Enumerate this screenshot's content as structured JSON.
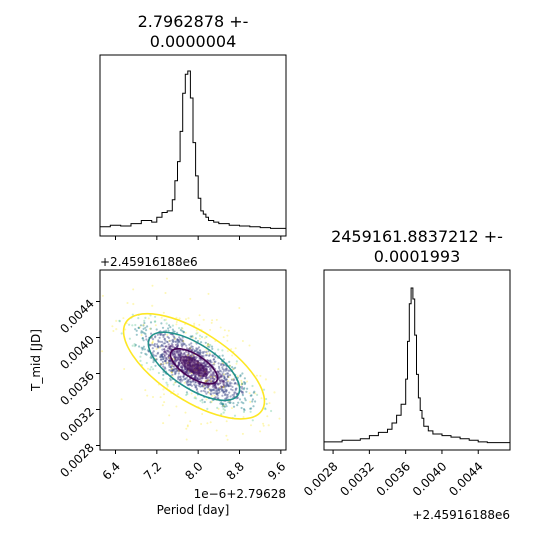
{
  "chart_data": [
    {
      "type": "histogram",
      "panel": "top-left",
      "title_line1": "2.7962878 +-",
      "title_line2": "0.0000004",
      "xlim": [
        6.1,
        9.7
      ],
      "tick_values": [
        6.4,
        7.2,
        8.0,
        8.8,
        9.6
      ],
      "step_x": [
        6.1,
        6.3,
        6.5,
        6.7,
        6.9,
        7.1,
        7.2,
        7.3,
        7.4,
        7.5,
        7.55,
        7.6,
        7.65,
        7.7,
        7.75,
        7.8,
        7.85,
        7.9,
        7.95,
        8.0,
        8.05,
        8.1,
        8.15,
        8.2,
        8.3,
        8.4,
        8.6,
        8.8,
        9.0,
        9.2,
        9.4,
        9.7
      ],
      "step_y": [
        0.02,
        0.03,
        0.025,
        0.04,
        0.06,
        0.05,
        0.08,
        0.11,
        0.12,
        0.19,
        0.31,
        0.43,
        0.62,
        0.86,
        0.98,
        1.0,
        0.83,
        0.55,
        0.34,
        0.2,
        0.12,
        0.1,
        0.08,
        0.06,
        0.05,
        0.04,
        0.03,
        0.025,
        0.02,
        0.015,
        0.01
      ]
    },
    {
      "type": "scatter+contour",
      "panel": "bottom-left",
      "offset_label": "+2.45916188e6",
      "xlabel": "Period [day]",
      "ylabel": "T_mid [JD]",
      "x_offset_label": "1e−6+2.79628",
      "xlim": [
        6.1,
        9.7
      ],
      "ylim": [
        0.00275,
        0.00475
      ],
      "x_tick_labels": [
        "6.4",
        "7.2",
        "8.0",
        "8.8",
        "9.6"
      ],
      "x_tick_values": [
        6.4,
        7.2,
        8.0,
        8.8,
        9.6
      ],
      "y_tick_labels": [
        "0.0028",
        "0.0032",
        "0.0036",
        "0.0040",
        "0.0044"
      ],
      "y_tick_values": [
        0.0028,
        0.0032,
        0.0036,
        0.004,
        0.0044
      ],
      "center": [
        7.92,
        0.00368
      ],
      "contours": [
        {
          "level": "inner",
          "color": "#440154"
        },
        {
          "level": "middle",
          "color": "#21918c"
        },
        {
          "level": "outer",
          "color": "#fde725"
        }
      ]
    },
    {
      "type": "histogram",
      "panel": "bottom-right",
      "title_line1": "2459161.8837212 +-",
      "title_line2": "0.0001993",
      "xlim": [
        0.0027,
        0.00475
      ],
      "tick_labels": [
        "0.0028",
        "0.0032",
        "0.0036",
        "0.0040",
        "0.0044"
      ],
      "tick_values": [
        0.0028,
        0.0032,
        0.0036,
        0.004,
        0.0044
      ],
      "offset_label": "+2.45916188e6",
      "step_x": [
        0.0027,
        0.0029,
        0.0031,
        0.0032,
        0.0033,
        0.0034,
        0.00345,
        0.0035,
        0.00355,
        0.0036,
        0.00362,
        0.00364,
        0.00366,
        0.00368,
        0.0037,
        0.00372,
        0.00374,
        0.00376,
        0.00378,
        0.0038,
        0.00385,
        0.0039,
        0.004,
        0.0041,
        0.0042,
        0.0043,
        0.0044,
        0.0045,
        0.00475
      ],
      "step_y": [
        0.02,
        0.03,
        0.04,
        0.06,
        0.08,
        0.1,
        0.14,
        0.19,
        0.26,
        0.42,
        0.66,
        0.9,
        1.0,
        0.93,
        0.7,
        0.45,
        0.3,
        0.22,
        0.17,
        0.12,
        0.09,
        0.07,
        0.06,
        0.05,
        0.04,
        0.03,
        0.02,
        0.015
      ]
    }
  ]
}
